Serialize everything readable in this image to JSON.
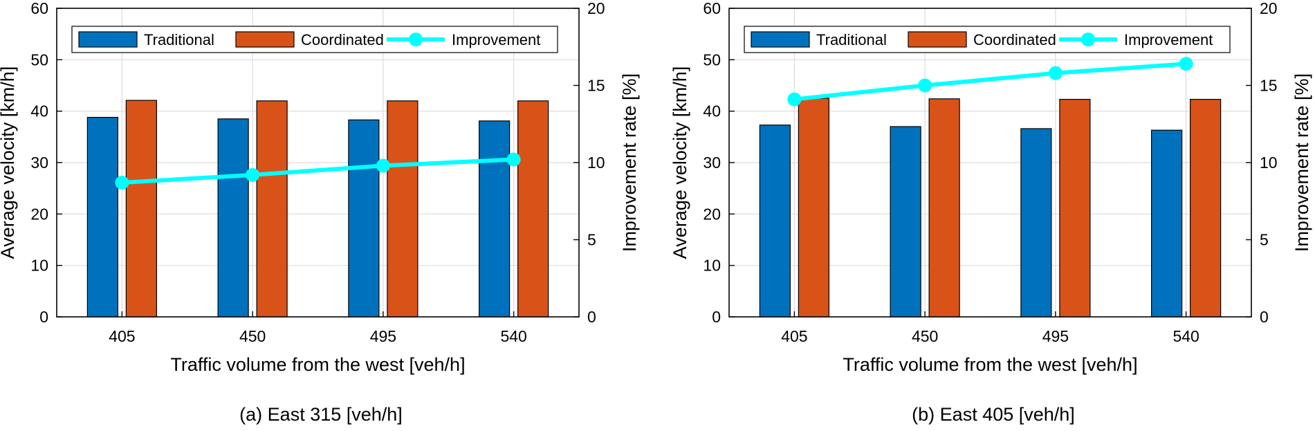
{
  "chart_data": [
    {
      "type": "bar",
      "caption": "(a) East  315 [veh/h]",
      "categories": [
        "405",
        "450",
        "495",
        "540"
      ],
      "xlabel": "Traffic volume from the west [veh/h]",
      "ylabel": "Average velocity [km/h]",
      "ylabel_right": "Improvement rate [%]",
      "ylim": [
        0,
        60
      ],
      "ylim_right": [
        0,
        20
      ],
      "yticks": [
        "0",
        "10",
        "20",
        "30",
        "40",
        "50",
        "60"
      ],
      "yticks_right": [
        "0",
        "5",
        "10",
        "15",
        "20"
      ],
      "grid": true,
      "legend_position": "top",
      "series": [
        {
          "name": "Traditional",
          "kind": "bar",
          "axis": "left",
          "color": "#0072BD",
          "values": [
            38.8,
            38.5,
            38.3,
            38.1
          ]
        },
        {
          "name": "Coordinated",
          "kind": "bar",
          "axis": "left",
          "color": "#D95319",
          "values": [
            42.1,
            42.0,
            42.0,
            42.0
          ]
        },
        {
          "name": "Improvement",
          "kind": "line",
          "axis": "right",
          "color": "#00FFFF",
          "values": [
            8.7,
            9.2,
            9.8,
            10.2
          ]
        }
      ]
    },
    {
      "type": "bar",
      "caption": "(b) East  405 [veh/h]",
      "categories": [
        "405",
        "450",
        "495",
        "540"
      ],
      "xlabel": "Traffic volume from the west [veh/h]",
      "ylabel": "Average velocity [km/h]",
      "ylabel_right": "Improvement rate [%]",
      "ylim": [
        0,
        60
      ],
      "ylim_right": [
        0,
        20
      ],
      "yticks": [
        "0",
        "10",
        "20",
        "30",
        "40",
        "50",
        "60"
      ],
      "yticks_right": [
        "0",
        "5",
        "10",
        "15",
        "20"
      ],
      "grid": true,
      "legend_position": "top",
      "series": [
        {
          "name": "Traditional",
          "kind": "bar",
          "axis": "left",
          "color": "#0072BD",
          "values": [
            37.3,
            37.0,
            36.6,
            36.3
          ]
        },
        {
          "name": "Coordinated",
          "kind": "bar",
          "axis": "left",
          "color": "#D95319",
          "values": [
            42.5,
            42.4,
            42.3,
            42.3
          ]
        },
        {
          "name": "Improvement",
          "kind": "line",
          "axis": "right",
          "color": "#00FFFF",
          "values": [
            14.1,
            15.0,
            15.8,
            16.4
          ]
        }
      ]
    }
  ]
}
